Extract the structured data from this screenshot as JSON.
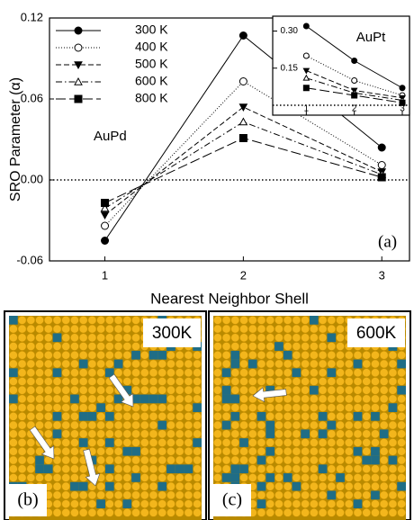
{
  "chart_data": [
    {
      "type": "line",
      "y_label": "SRO Parameter (α)",
      "x_label": "Nearest Neighbor Shell",
      "annotations": [
        "AuPd",
        "(a)"
      ],
      "x": [
        1,
        2,
        3
      ],
      "xlim": [
        0.6,
        3.2
      ],
      "xticks": [
        1,
        2,
        3
      ],
      "ylim": [
        -0.06,
        0.12
      ],
      "yticks": [
        -0.06,
        {
          "value": 0,
          "label": "0.00"
        },
        0.06,
        0.12
      ],
      "reference_line": 0,
      "legend": "upper left",
      "series": [
        {
          "name": "300 K",
          "color": "#000000",
          "marker": "circle",
          "filled": true,
          "linestyle": "solid",
          "values": [
            -0.045,
            0.107,
            0.024
          ]
        },
        {
          "name": "400 K",
          "color": "#000000",
          "marker": "circle",
          "filled": false,
          "linestyle": "dotted",
          "values": [
            -0.034,
            0.073,
            0.011
          ]
        },
        {
          "name": "500 K",
          "color": "#000000",
          "marker": "triangle-down",
          "filled": true,
          "linestyle": "dashed",
          "values": [
            -0.026,
            0.054,
            0.006
          ]
        },
        {
          "name": "600 K",
          "color": "#000000",
          "marker": "triangle-up",
          "filled": false,
          "linestyle": "dashdot",
          "values": [
            -0.021,
            0.043,
            0.004
          ]
        },
        {
          "name": "800 K",
          "color": "#000000",
          "marker": "square",
          "filled": true,
          "linestyle": "longdash",
          "values": [
            -0.017,
            0.031,
            0.002
          ]
        }
      ]
    },
    {
      "type": "line",
      "annotations": [
        "AuPt"
      ],
      "x": [
        1,
        2,
        3
      ],
      "xlim": [
        0.3,
        3.15
      ],
      "xticks": [
        1,
        2,
        3
      ],
      "ylim": [
        -0.04,
        0.36
      ],
      "yticks": [
        0.15,
        {
          "value": 0.3,
          "label": "0.30"
        }
      ],
      "reference_line": 0,
      "series": [
        {
          "color": "#000000",
          "marker": "circle",
          "filled": true,
          "linestyle": "solid",
          "values": [
            0.32,
            0.18,
            0.07
          ]
        },
        {
          "color": "#000000",
          "marker": "circle",
          "filled": false,
          "linestyle": "dotted",
          "values": [
            0.2,
            0.1,
            0.04
          ]
        },
        {
          "color": "#000000",
          "marker": "triangle-down",
          "filled": true,
          "linestyle": "dashed",
          "values": [
            0.14,
            0.06,
            0.03
          ]
        },
        {
          "color": "#000000",
          "marker": "triangle-up",
          "filled": false,
          "linestyle": "dashdot",
          "values": [
            0.11,
            0.05,
            0.02
          ]
        },
        {
          "color": "#000000",
          "marker": "square",
          "filled": true,
          "linestyle": "longdash",
          "values": [
            0.07,
            0.04,
            0.01
          ]
        }
      ]
    }
  ],
  "panels": [
    {
      "label": "(b)",
      "title": "300K"
    },
    {
      "label": "(c)",
      "title": "600K"
    }
  ]
}
